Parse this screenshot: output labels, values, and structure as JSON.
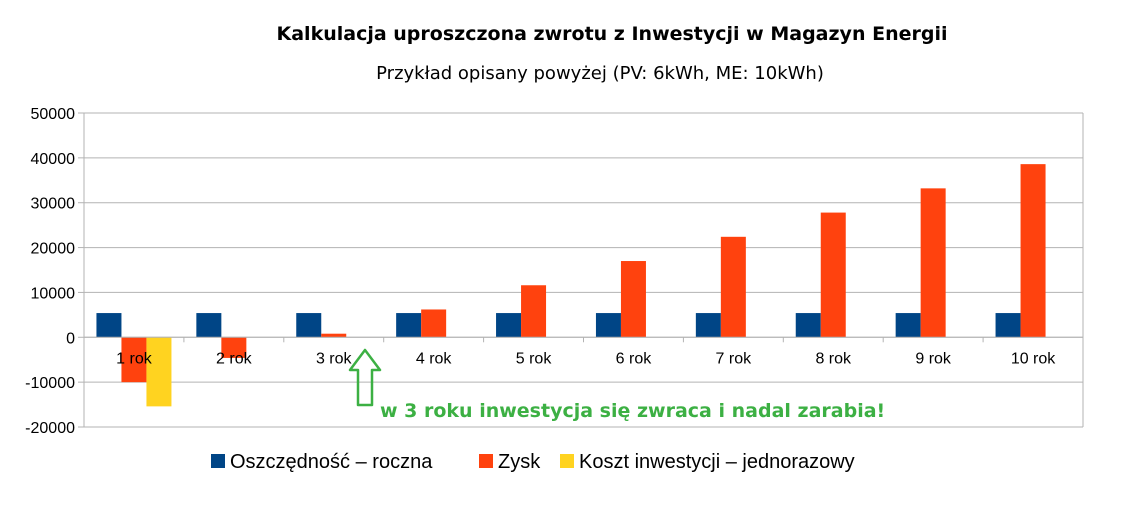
{
  "chart_data": {
    "type": "bar",
    "title": "Kalkulacja uproszczona zwrotu z Inwestycji w Magazyn Energii",
    "subtitle": "Przykład opisany powyżej (PV: 6kWh, ME: 10kWh)",
    "xlabel": "",
    "ylabel": "",
    "ylim": [
      -20000,
      50000
    ],
    "yticks": [
      50000,
      40000,
      30000,
      20000,
      10000,
      0,
      -10000,
      -20000
    ],
    "categories": [
      "1 rok",
      "2 rok",
      "3 rok",
      "4 rok",
      "5 rok",
      "6 rok",
      "7 rok",
      "8 rok",
      "9 rok",
      "10 rok"
    ],
    "series": [
      {
        "name": "Oszczędność – roczna",
        "color": "#004586",
        "values": [
          5400,
          5400,
          5400,
          5400,
          5400,
          5400,
          5400,
          5400,
          5400,
          5400
        ]
      },
      {
        "name": "Zysk",
        "color": "#FF420E",
        "values": [
          -10000,
          -4600,
          800,
          6200,
          11600,
          17000,
          22400,
          27800,
          33200,
          38600
        ]
      },
      {
        "name": "Koszt inwestycji – jednorazowy",
        "color": "#FFD320",
        "values": [
          -15400,
          null,
          null,
          null,
          null,
          null,
          null,
          null,
          null,
          null
        ]
      }
    ],
    "grid": true,
    "legend_position": "bottom",
    "annotation": {
      "text": "w 3 roku inwestycja się zwraca i nadal zarabia!",
      "color": "#3CB043",
      "points_to": "3 rok"
    }
  }
}
